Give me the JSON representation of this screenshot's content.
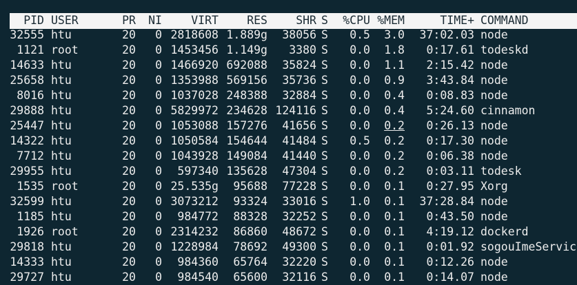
{
  "table": {
    "columns": [
      "PID",
      "USER",
      "PR",
      "NI",
      "VIRT",
      "RES",
      "SHR",
      "S",
      "%CPU",
      "%MEM",
      "TIME+",
      "COMMAND"
    ],
    "rows": [
      [
        "32555",
        "htu",
        "20",
        "0",
        "2818608",
        "1.889g",
        "38056",
        "S",
        "0.5",
        "3.0",
        "37:02.03",
        "node"
      ],
      [
        "1121",
        "root",
        "20",
        "0",
        "1453456",
        "1.149g",
        "3380",
        "S",
        "0.0",
        "1.8",
        "0:17.61",
        "todeskd"
      ],
      [
        "14633",
        "htu",
        "20",
        "0",
        "1466920",
        "692088",
        "35824",
        "S",
        "0.0",
        "1.1",
        "2:15.42",
        "node"
      ],
      [
        "25658",
        "htu",
        "20",
        "0",
        "1353988",
        "569156",
        "35736",
        "S",
        "0.0",
        "0.9",
        "3:43.84",
        "node"
      ],
      [
        "8016",
        "htu",
        "20",
        "0",
        "1037028",
        "248388",
        "32884",
        "S",
        "0.0",
        "0.4",
        "0:08.83",
        "node"
      ],
      [
        "29888",
        "htu",
        "20",
        "0",
        "5829972",
        "234628",
        "124116",
        "S",
        "0.0",
        "0.4",
        "5:24.60",
        "cinnamon"
      ],
      [
        "25447",
        "htu",
        "20",
        "0",
        "1053088",
        "157276",
        "41656",
        "S",
        "0.0",
        "0.2",
        "0:26.13",
        "node"
      ],
      [
        "14322",
        "htu",
        "20",
        "0",
        "1050584",
        "154644",
        "41484",
        "S",
        "0.5",
        "0.2",
        "0:17.30",
        "node"
      ],
      [
        "7712",
        "htu",
        "20",
        "0",
        "1043928",
        "149084",
        "41440",
        "S",
        "0.0",
        "0.2",
        "0:06.38",
        "node"
      ],
      [
        "29955",
        "htu",
        "20",
        "0",
        "597340",
        "135628",
        "47304",
        "S",
        "0.0",
        "0.2",
        "0:03.11",
        "todesk"
      ],
      [
        "1535",
        "root",
        "20",
        "0",
        "25.535g",
        "95688",
        "77228",
        "S",
        "0.0",
        "0.1",
        "0:27.95",
        "Xorg"
      ],
      [
        "32599",
        "htu",
        "20",
        "0",
        "3073212",
        "93324",
        "33016",
        "S",
        "1.0",
        "0.1",
        "37:28.84",
        "node"
      ],
      [
        "1185",
        "htu",
        "20",
        "0",
        "984772",
        "88328",
        "32252",
        "S",
        "0.0",
        "0.1",
        "0:43.50",
        "node"
      ],
      [
        "1926",
        "root",
        "20",
        "0",
        "2314232",
        "86860",
        "48672",
        "S",
        "0.0",
        "0.1",
        "4:19.12",
        "dockerd"
      ],
      [
        "29818",
        "htu",
        "20",
        "0",
        "1228984",
        "78692",
        "49300",
        "S",
        "0.0",
        "0.1",
        "0:01.92",
        "sogouImeServic"
      ],
      [
        "14333",
        "htu",
        "20",
        "0",
        "984360",
        "65764",
        "32220",
        "S",
        "0.0",
        "0.1",
        "0:12.26",
        "node"
      ],
      [
        "29727",
        "htu",
        "20",
        "0",
        "984540",
        "65600",
        "32116",
        "S",
        "0.0",
        "0.1",
        "0:14.07",
        "node"
      ]
    ]
  }
}
